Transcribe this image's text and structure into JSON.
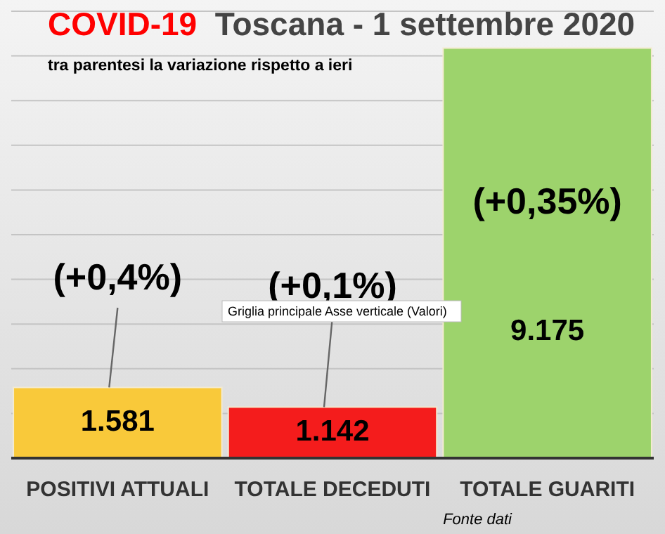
{
  "chart_data": {
    "type": "bar",
    "title": "COVID-19  Toscana - 1 settembre 2020",
    "subtitle": "tra parentesi la variazione rispetto a ieri",
    "categories": [
      "POSITIVI ATTUALI",
      "TOTALE DECEDUTI",
      "TOTALE GUARITI"
    ],
    "values": [
      1581,
      1142,
      9175
    ],
    "colors": [
      "#f9c93a",
      "#f41c1c",
      "#9dd36c"
    ],
    "value_labels": [
      "1.581",
      "1.142",
      "9.175"
    ],
    "ylim": [
      0,
      10000
    ],
    "yticks": [
      {
        "value": 0,
        "label": null
      },
      {
        "value": 1000,
        "label": null
      },
      {
        "value": 2000,
        "label": null
      },
      {
        "value": 3000,
        "label": null
      },
      {
        "value": 4000,
        "label": null
      },
      {
        "value": 5000,
        "label": null
      },
      {
        "value": 6000,
        "label": null
      },
      {
        "value": 7000,
        "label": null
      },
      {
        "value": 8000,
        "label": null
      },
      {
        "value": 9000,
        "label": null
      },
      {
        "value": 10000,
        "label": null
      }
    ],
    "grid": "y",
    "annotations": [
      "(+0,4%)",
      "(+0,1%)",
      "(+0,35%)",
      "Griglia principale Asse verticale (Valori)",
      "Fonte dati"
    ]
  }
}
